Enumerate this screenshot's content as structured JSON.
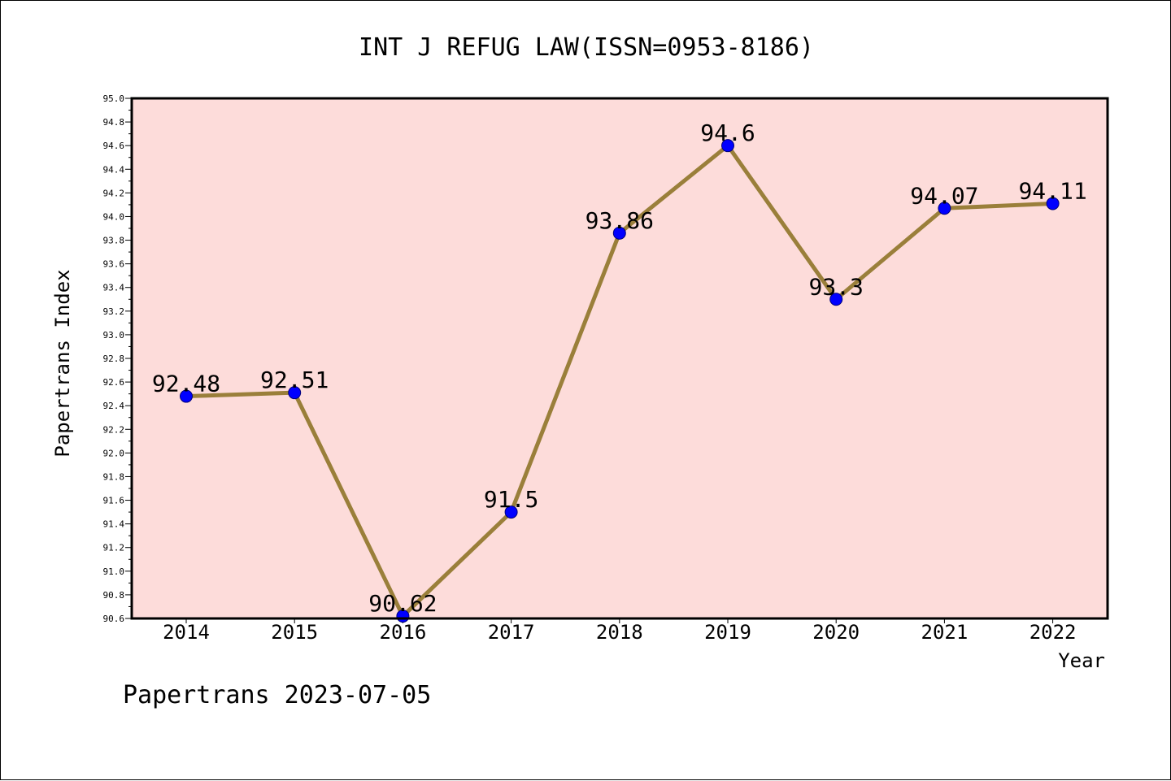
{
  "chart_data": {
    "type": "line",
    "title": "INT J REFUG LAW(ISSN=0953-8186)",
    "xlabel": "Year",
    "ylabel": "Papertrans Index",
    "categories": [
      "2014",
      "2015",
      "2016",
      "2017",
      "2018",
      "2019",
      "2020",
      "2021",
      "2022"
    ],
    "values": [
      92.48,
      92.51,
      90.62,
      91.5,
      93.86,
      94.6,
      93.3,
      94.07,
      94.11
    ],
    "data_labels": [
      "92.48",
      "92.51",
      "90.62",
      "91.5",
      "93.86",
      "94.6",
      "93.3",
      "94.07",
      "94.11"
    ],
    "ylim": [
      90.6,
      95.0
    ],
    "yticks": [
      "90.6",
      "90.8",
      "91.0",
      "91.2",
      "91.4",
      "91.6",
      "91.8",
      "92.0",
      "92.2",
      "92.4",
      "92.6",
      "92.8",
      "93.0",
      "93.2",
      "93.4",
      "93.6",
      "93.8",
      "94.0",
      "94.2",
      "94.4",
      "94.6",
      "94.8",
      "95.0"
    ],
    "grid": false,
    "legend": "none",
    "colors": {
      "plot_background": "#fddcda",
      "line": "#9a7f3a",
      "marker": "#0000ff"
    }
  },
  "footer": "Papertrans 2023-07-05"
}
